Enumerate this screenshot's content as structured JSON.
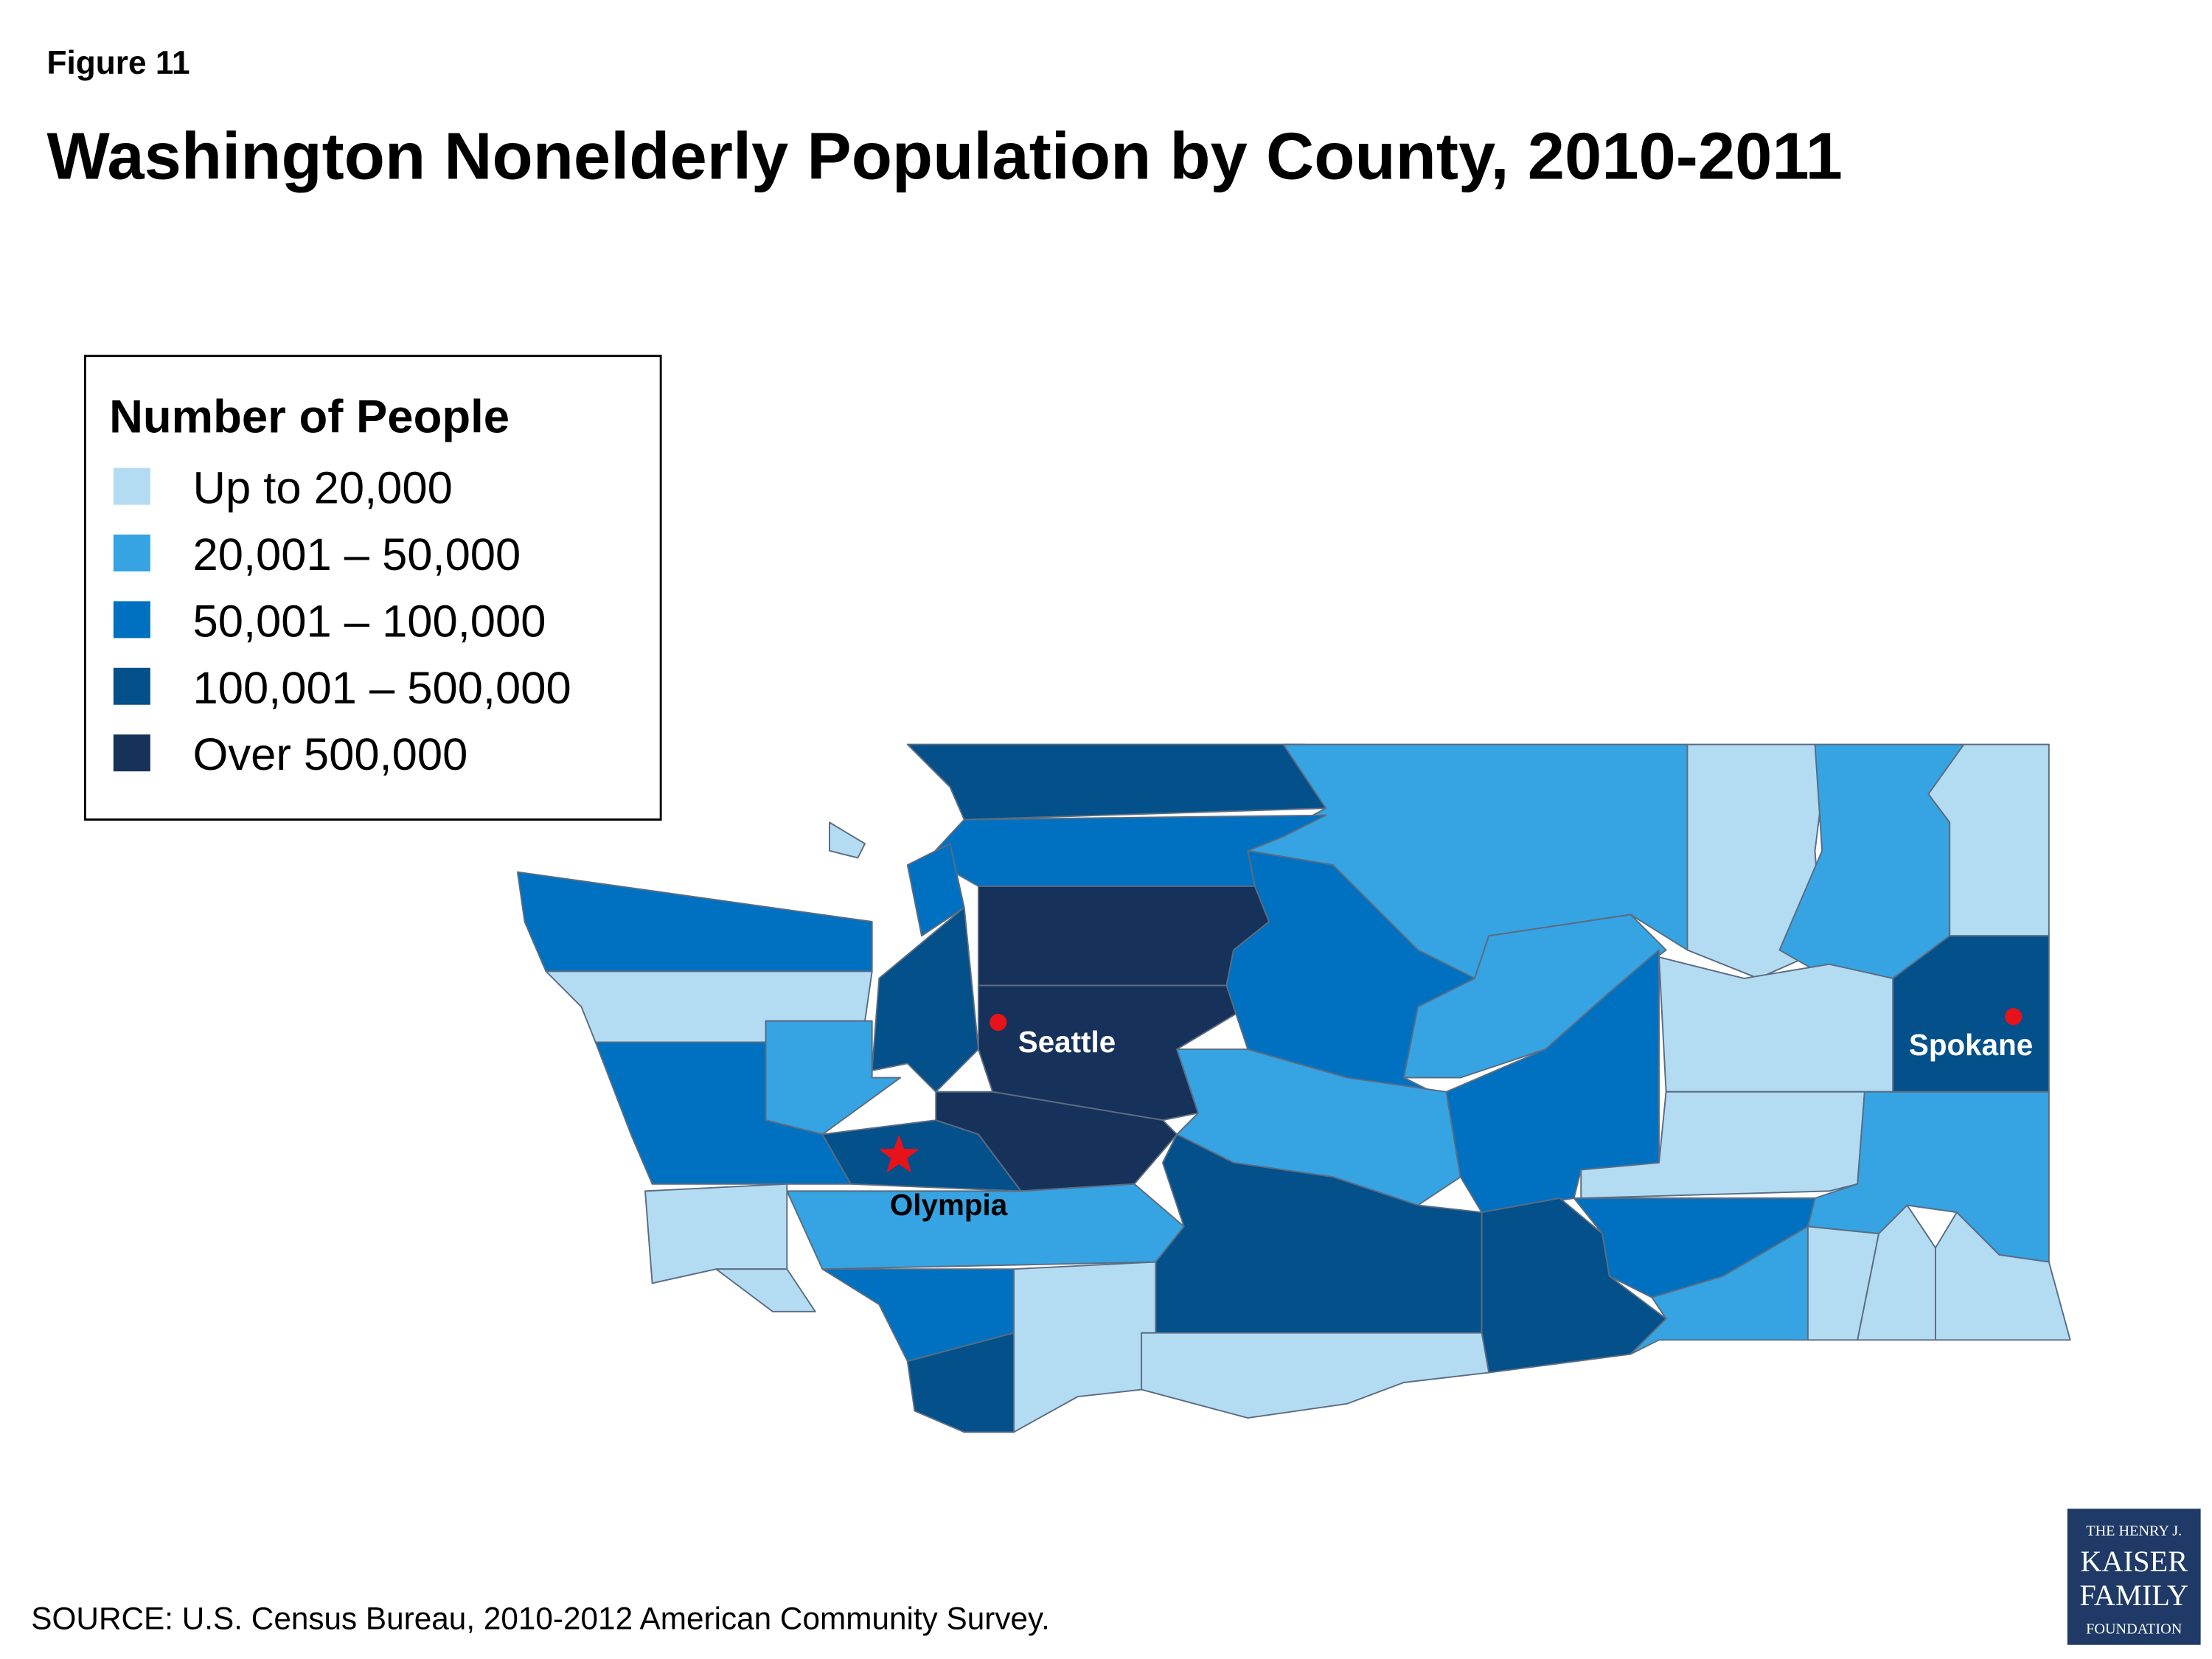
{
  "header": {
    "figure_label": "Figure 11",
    "title": "Washington Nonelderly Population by County, 2010-2011"
  },
  "legend": {
    "title": "Number of People",
    "items": [
      {
        "label": "Up to 20,000",
        "color": "#b3dcf3"
      },
      {
        "label": "20,001 – 50,000",
        "color": "#36a3e3"
      },
      {
        "label": "50,001 – 100,000",
        "color": "#0071c1"
      },
      {
        "label": "100,001 – 500,000",
        "color": "#03508a"
      },
      {
        "label": "Over 500,000",
        "color": "#16325a"
      }
    ]
  },
  "map": {
    "cities": [
      {
        "name": "Seattle"
      },
      {
        "name": "Spokane"
      },
      {
        "name": "Olympia"
      }
    ]
  },
  "source": "SOURCE: U.S. Census Bureau, 2010-2012 American Community Survey.",
  "logo": {
    "lines": [
      "THE HENRY J.",
      "KAISER",
      "FAMILY",
      "FOUNDATION"
    ]
  }
}
